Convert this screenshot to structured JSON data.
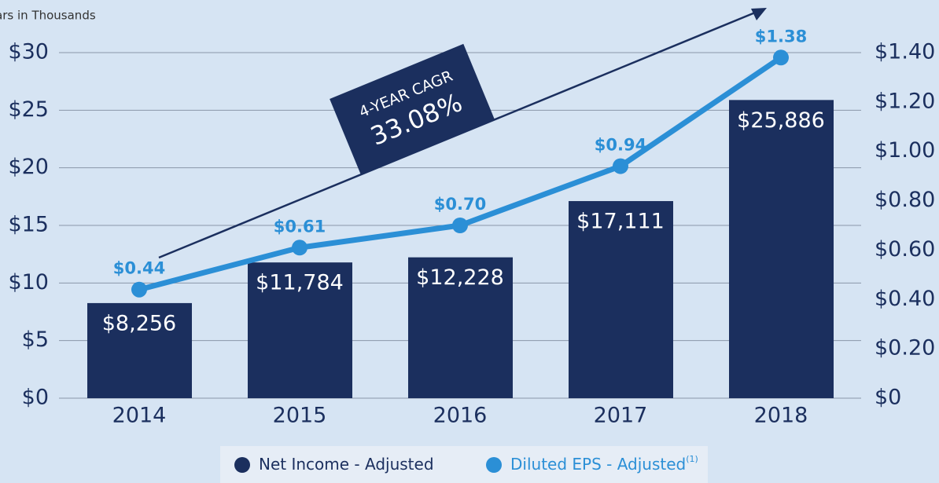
{
  "chart_data": {
    "type": "bar_line",
    "subtitle": "Dollars in Thousands",
    "categories": [
      "2014",
      "2015",
      "2016",
      "2017",
      "2018"
    ],
    "series": [
      {
        "name": "Net Income - Adjusted",
        "type": "bar",
        "color": "#1b2f5e",
        "values": [
          8.256,
          11.784,
          12.228,
          17.111,
          25.886
        ],
        "value_labels": [
          "$8,256",
          "$11,784",
          "$12,228",
          "$17,111",
          "$25,886"
        ]
      },
      {
        "name": "Diluted EPS - Adjusted",
        "legend_suffix": "(1)",
        "type": "line",
        "axis": "y2",
        "color": "#2b8fd6",
        "values": [
          0.44,
          0.61,
          0.7,
          0.94,
          1.38
        ],
        "value_labels": [
          "$0.44",
          "$0.61",
          "$0.70",
          "$0.94",
          "$1.38"
        ]
      }
    ],
    "ylim": [
      0,
      30
    ],
    "yticks": [
      {
        "value": 0,
        "label": "$0"
      },
      {
        "value": 5,
        "label": "$5"
      },
      {
        "value": 10,
        "label": "$10"
      },
      {
        "value": 15,
        "label": "$15"
      },
      {
        "value": 20,
        "label": "$20"
      },
      {
        "value": 25,
        "label": "$25"
      },
      {
        "value": 30,
        "label": "$30"
      }
    ],
    "y2lim": [
      0,
      1.4
    ],
    "y2ticks": [
      {
        "value": 0,
        "label": "$0"
      },
      {
        "value": 0.2,
        "label": "$0.20"
      },
      {
        "value": 0.4,
        "label": "$0.40"
      },
      {
        "value": 0.6,
        "label": "$0.60"
      },
      {
        "value": 0.8,
        "label": "$0.80"
      },
      {
        "value": 1.0,
        "label": "$1.00"
      },
      {
        "value": 1.2,
        "label": "$1.20"
      },
      {
        "value": 1.4,
        "label": "$1.40"
      }
    ],
    "grid": true,
    "annotations": [
      "4-YEAR CAGR",
      "33.08%"
    ]
  }
}
